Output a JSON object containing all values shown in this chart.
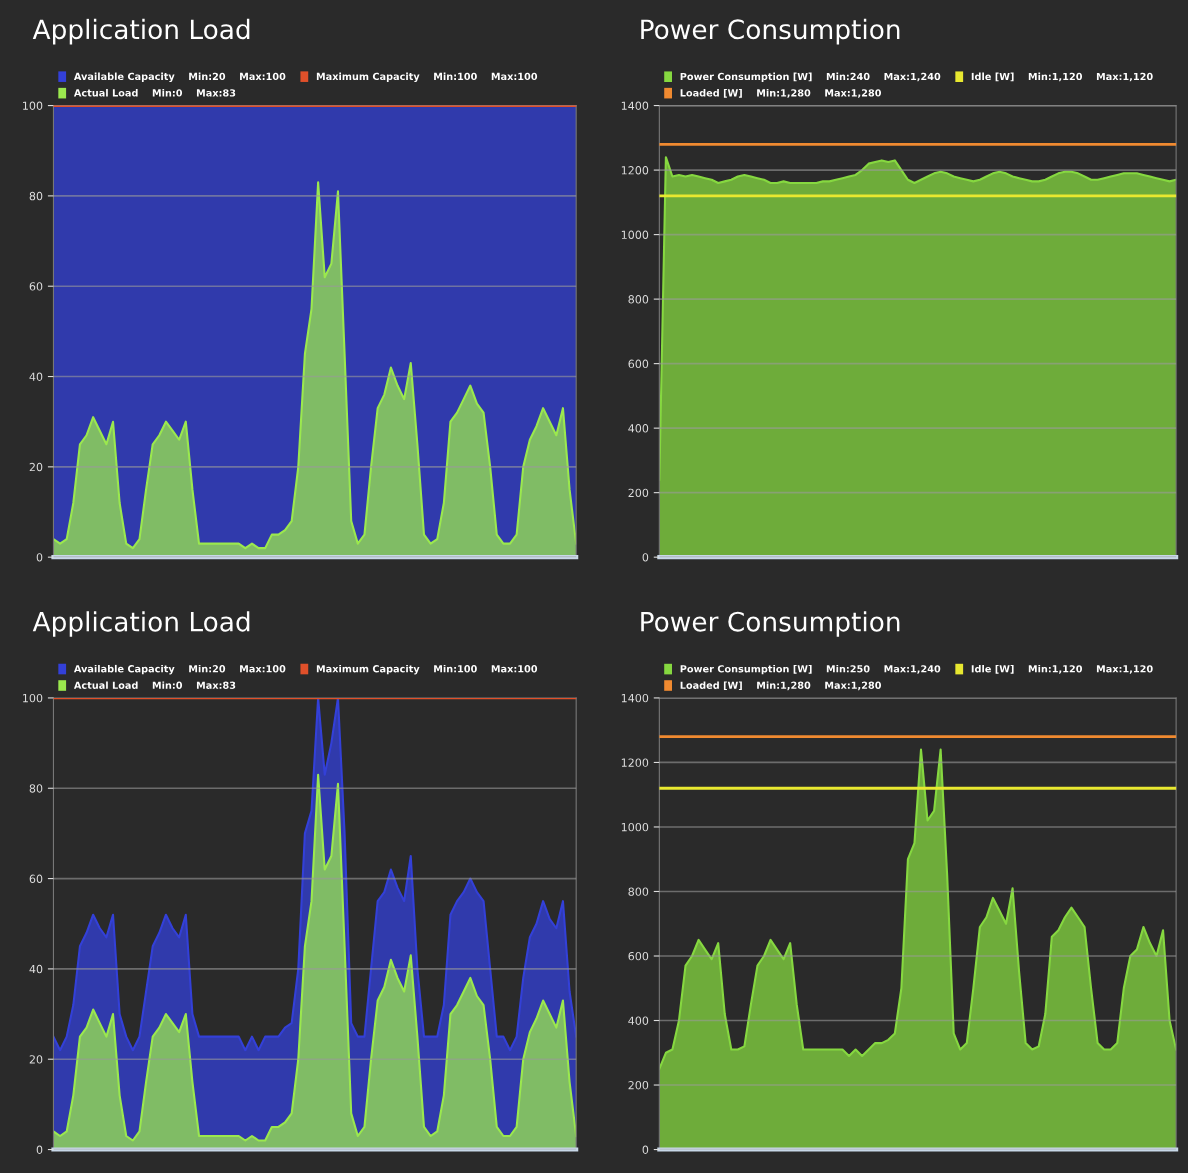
{
  "chart_data": [
    {
      "type": "area",
      "title": "Application Load",
      "categories": [
        null,
        null,
        null,
        null,
        null,
        null,
        null,
        null,
        null,
        null,
        null,
        null,
        null,
        null,
        null,
        null,
        null,
        null,
        null,
        null,
        null,
        null,
        null,
        null,
        null,
        null,
        null,
        null,
        null,
        null,
        null,
        null,
        null,
        null,
        null,
        null,
        null,
        null,
        null,
        null,
        null,
        null,
        null,
        null,
        null,
        null,
        null,
        null,
        null,
        null,
        null,
        null,
        null,
        null,
        null,
        null,
        null,
        null,
        null,
        null,
        null,
        null,
        null,
        null,
        null,
        null,
        null,
        null,
        null,
        null,
        null,
        null,
        null,
        null,
        null,
        null,
        null,
        null,
        null,
        null
      ],
      "series": [
        {
          "name": "Available Capacity    Min:20    Max:100",
          "color": "#3340d8",
          "values": [
            100,
            100,
            100,
            100,
            100,
            100,
            100,
            100,
            100,
            100,
            100,
            100,
            100,
            100,
            100,
            100,
            100,
            100,
            100,
            100,
            100,
            100,
            100,
            100,
            100,
            100,
            100,
            100,
            100,
            100,
            100,
            100,
            100,
            100,
            100,
            100,
            100,
            100,
            100,
            100,
            100,
            100,
            100,
            100,
            100,
            100,
            100,
            100,
            100,
            100,
            100,
            100,
            100,
            100,
            100,
            100,
            100,
            100,
            100,
            100,
            100,
            100,
            100,
            100,
            100,
            100,
            100,
            100,
            100,
            100,
            100,
            100,
            100,
            100,
            100,
            100,
            100,
            100,
            100,
            100
          ]
        },
        {
          "name": "Actual Load    Min:0    Max:83",
          "color": "#9be84e",
          "values": [
            4,
            3,
            4,
            12,
            25,
            27,
            31,
            28,
            25,
            30,
            12,
            3,
            2,
            4,
            15,
            25,
            27,
            30,
            28,
            26,
            30,
            15,
            3,
            3,
            3,
            3,
            3,
            3,
            3,
            2,
            3,
            2,
            2,
            5,
            5,
            6,
            8,
            20,
            45,
            55,
            83,
            62,
            65,
            81,
            45,
            8,
            3,
            5,
            20,
            33,
            36,
            42,
            38,
            35,
            43,
            25,
            5,
            3,
            4,
            12,
            30,
            32,
            35,
            38,
            34,
            32,
            20,
            5,
            3,
            3,
            5,
            20,
            26,
            29,
            33,
            30,
            27,
            33,
            15,
            3
          ]
        }
      ],
      "ref_lines": [
        {
          "axis": "y",
          "value": 100,
          "label": "Maximum Capacity    Min:100    Max:100",
          "color": "#e0502a"
        }
      ],
      "ylim": [
        0,
        100
      ],
      "yticks": [
        0,
        20,
        40,
        60,
        80,
        100
      ],
      "grid": "y",
      "legend": "top"
    },
    {
      "type": "area",
      "title": "Power Consumption",
      "categories": [
        null,
        null,
        null,
        null,
        null,
        null,
        null,
        null,
        null,
        null,
        null,
        null,
        null,
        null,
        null,
        null,
        null,
        null,
        null,
        null,
        null,
        null,
        null,
        null,
        null,
        null,
        null,
        null,
        null,
        null,
        null,
        null,
        null,
        null,
        null,
        null,
        null,
        null,
        null,
        null,
        null,
        null,
        null,
        null,
        null,
        null,
        null,
        null,
        null,
        null,
        null,
        null,
        null,
        null,
        null,
        null,
        null,
        null,
        null,
        null,
        null,
        null,
        null,
        null,
        null,
        null,
        null,
        null,
        null,
        null,
        null,
        null,
        null,
        null,
        null,
        null,
        null,
        null,
        null,
        null
      ],
      "series": [
        {
          "name": "Power Consumption [W]    Min:240    Max:1,240",
          "color": "#86d840",
          "values": [
            240,
            1240,
            1180,
            1185,
            1180,
            1185,
            1180,
            1175,
            1170,
            1160,
            1165,
            1170,
            1180,
            1185,
            1180,
            1175,
            1170,
            1160,
            1160,
            1165,
            1160,
            1160,
            1160,
            1160,
            1160,
            1165,
            1165,
            1170,
            1175,
            1180,
            1185,
            1200,
            1220,
            1225,
            1230,
            1225,
            1230,
            1200,
            1170,
            1160,
            1170,
            1180,
            1190,
            1195,
            1190,
            1180,
            1175,
            1170,
            1165,
            1170,
            1180,
            1190,
            1195,
            1190,
            1180,
            1175,
            1170,
            1165,
            1165,
            1170,
            1180,
            1190,
            1195,
            1195,
            1190,
            1180,
            1170,
            1170,
            1175,
            1180,
            1185,
            1190,
            1190,
            1190,
            1185,
            1180,
            1175,
            1170,
            1165,
            1170
          ]
        }
      ],
      "ref_lines": [
        {
          "axis": "y",
          "value": 1280,
          "label": "Loaded [W]    Min:1,280    Max:1,280",
          "color": "#f08a30"
        },
        {
          "axis": "y",
          "value": 1120,
          "label": "Idle [W]    Min:1,120    Max:1,120",
          "color": "#e8e830"
        }
      ],
      "ylim": [
        0,
        1400
      ],
      "yticks": [
        0,
        200,
        400,
        600,
        800,
        1000,
        1200,
        1400
      ],
      "grid": "y",
      "legend": "top"
    },
    {
      "type": "area",
      "title": "Application Load",
      "categories": [
        null,
        null,
        null,
        null,
        null,
        null,
        null,
        null,
        null,
        null,
        null,
        null,
        null,
        null,
        null,
        null,
        null,
        null,
        null,
        null,
        null,
        null,
        null,
        null,
        null,
        null,
        null,
        null,
        null,
        null,
        null,
        null,
        null,
        null,
        null,
        null,
        null,
        null,
        null,
        null,
        null,
        null,
        null,
        null,
        null,
        null,
        null,
        null,
        null,
        null,
        null,
        null,
        null,
        null,
        null,
        null,
        null,
        null,
        null,
        null,
        null,
        null,
        null,
        null,
        null,
        null,
        null,
        null,
        null,
        null,
        null,
        null,
        null,
        null,
        null,
        null,
        null,
        null,
        null,
        null
      ],
      "series": [
        {
          "name": "Available Capacity    Min:20    Max:100",
          "color": "#3340d8",
          "values": [
            25,
            22,
            25,
            32,
            45,
            48,
            52,
            49,
            47,
            52,
            30,
            25,
            22,
            25,
            35,
            45,
            48,
            52,
            49,
            47,
            52,
            30,
            25,
            25,
            25,
            25,
            25,
            25,
            25,
            22,
            25,
            22,
            25,
            25,
            25,
            27,
            28,
            40,
            70,
            75,
            100,
            83,
            90,
            100,
            70,
            28,
            25,
            25,
            40,
            55,
            57,
            62,
            58,
            55,
            65,
            40,
            25,
            25,
            25,
            32,
            52,
            55,
            57,
            60,
            57,
            55,
            40,
            25,
            25,
            22,
            25,
            38,
            47,
            50,
            55,
            51,
            49,
            55,
            35,
            25
          ]
        },
        {
          "name": "Actual Load    Min:0    Max:83",
          "color": "#9be84e",
          "values": [
            4,
            3,
            4,
            12,
            25,
            27,
            31,
            28,
            25,
            30,
            12,
            3,
            2,
            4,
            15,
            25,
            27,
            30,
            28,
            26,
            30,
            15,
            3,
            3,
            3,
            3,
            3,
            3,
            3,
            2,
            3,
            2,
            2,
            5,
            5,
            6,
            8,
            20,
            45,
            55,
            83,
            62,
            65,
            81,
            45,
            8,
            3,
            5,
            20,
            33,
            36,
            42,
            38,
            35,
            43,
            25,
            5,
            3,
            4,
            12,
            30,
            32,
            35,
            38,
            34,
            32,
            20,
            5,
            3,
            3,
            5,
            20,
            26,
            29,
            33,
            30,
            27,
            33,
            15,
            3
          ]
        }
      ],
      "ref_lines": [
        {
          "axis": "y",
          "value": 100,
          "label": "Maximum Capacity    Min:100    Max:100",
          "color": "#e0502a"
        }
      ],
      "ylim": [
        0,
        100
      ],
      "yticks": [
        0,
        20,
        40,
        60,
        80,
        100
      ],
      "grid": "y",
      "legend": "top"
    },
    {
      "type": "area",
      "title": "Power Consumption",
      "categories": [
        null,
        null,
        null,
        null,
        null,
        null,
        null,
        null,
        null,
        null,
        null,
        null,
        null,
        null,
        null,
        null,
        null,
        null,
        null,
        null,
        null,
        null,
        null,
        null,
        null,
        null,
        null,
        null,
        null,
        null,
        null,
        null,
        null,
        null,
        null,
        null,
        null,
        null,
        null,
        null,
        null,
        null,
        null,
        null,
        null,
        null,
        null,
        null,
        null,
        null,
        null,
        null,
        null,
        null,
        null,
        null,
        null,
        null,
        null,
        null,
        null,
        null,
        null,
        null,
        null,
        null,
        null,
        null,
        null,
        null,
        null,
        null,
        null,
        null,
        null,
        null,
        null,
        null,
        null,
        null
      ],
      "series": [
        {
          "name": "Power Consumption [W]    Min:250    Max:1,240",
          "color": "#86d840",
          "values": [
            250,
            300,
            310,
            400,
            570,
            600,
            650,
            620,
            590,
            640,
            420,
            310,
            310,
            320,
            450,
            570,
            600,
            650,
            620,
            590,
            640,
            450,
            310,
            310,
            310,
            310,
            310,
            310,
            310,
            290,
            310,
            290,
            310,
            330,
            330,
            340,
            360,
            500,
            900,
            950,
            1240,
            1020,
            1050,
            1240,
            850,
            360,
            310,
            330,
            500,
            690,
            720,
            780,
            740,
            700,
            810,
            550,
            330,
            310,
            320,
            420,
            660,
            680,
            720,
            750,
            720,
            690,
            500,
            330,
            310,
            310,
            330,
            500,
            600,
            620,
            690,
            640,
            600,
            680,
            400,
            310
          ]
        }
      ],
      "ref_lines": [
        {
          "axis": "y",
          "value": 1280,
          "label": "Loaded [W]    Min:1,280    Max:1,280",
          "color": "#f08a30"
        },
        {
          "axis": "y",
          "value": 1120,
          "label": "Idle [W]    Min:1,120    Max:1,120",
          "color": "#e8e830"
        }
      ],
      "ylim": [
        0,
        1400
      ],
      "yticks": [
        0,
        200,
        400,
        600,
        800,
        1000,
        1200,
        1400
      ],
      "grid": "y",
      "legend": "top"
    }
  ]
}
